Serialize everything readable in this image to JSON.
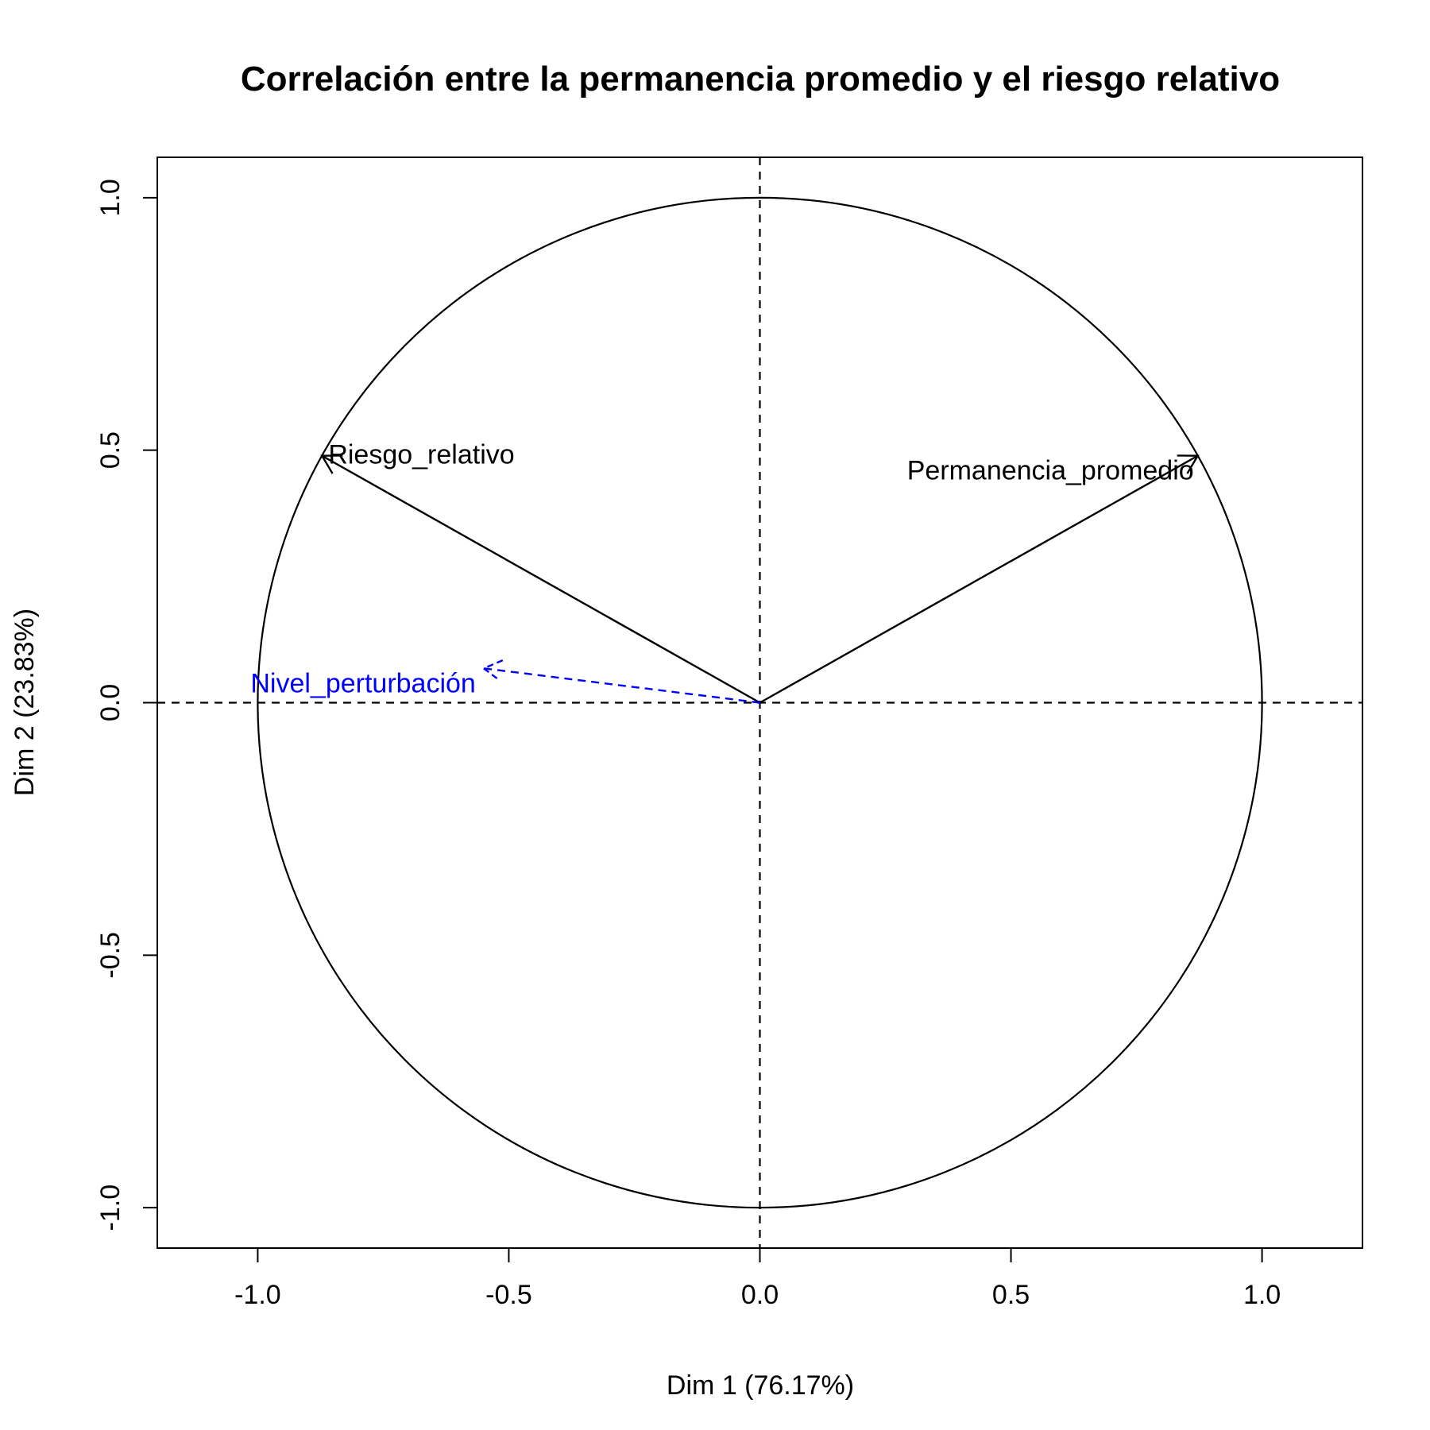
{
  "chart_data": {
    "type": "scatter",
    "subtype": "pca-correlation-circle",
    "title": "Correlación entre la permanencia promedio y el riesgo relativo",
    "xlabel": "Dim 1 (76.17%)",
    "ylabel": "Dim 2 (23.83%)",
    "xlim": [
      -1.2,
      1.2
    ],
    "ylim": [
      -1.08,
      1.08
    ],
    "xticks": [
      {
        "value": -1.0,
        "label": "-1.0"
      },
      {
        "value": -0.5,
        "label": "-0.5"
      },
      {
        "value": 0.0,
        "label": "0.0"
      },
      {
        "value": 0.5,
        "label": "0.5"
      },
      {
        "value": 1.0,
        "label": "1.0"
      }
    ],
    "yticks": [
      {
        "value": -1.0,
        "label": "-1.0"
      },
      {
        "value": -0.5,
        "label": "-0.5"
      },
      {
        "value": 0.0,
        "label": "0.0"
      },
      {
        "value": 0.5,
        "label": "0.5"
      },
      {
        "value": 1.0,
        "label": "1.0"
      }
    ],
    "unit_circle": true,
    "reference_lines": {
      "x": 0,
      "y": 0,
      "style": "dashed"
    },
    "grid": false,
    "vectors": [
      {
        "name": "Permanencia_promedio",
        "x": 0.872,
        "y": 0.489,
        "color": "#000000",
        "style": "solid",
        "supplementary": false
      },
      {
        "name": "Riesgo_relativo",
        "x": -0.872,
        "y": 0.489,
        "color": "#000000",
        "style": "solid",
        "supplementary": false
      },
      {
        "name": "Nivel_perturbación",
        "x": -0.55,
        "y": 0.068,
        "color": "#0000ff",
        "style": "dashed",
        "supplementary": true
      }
    ]
  }
}
